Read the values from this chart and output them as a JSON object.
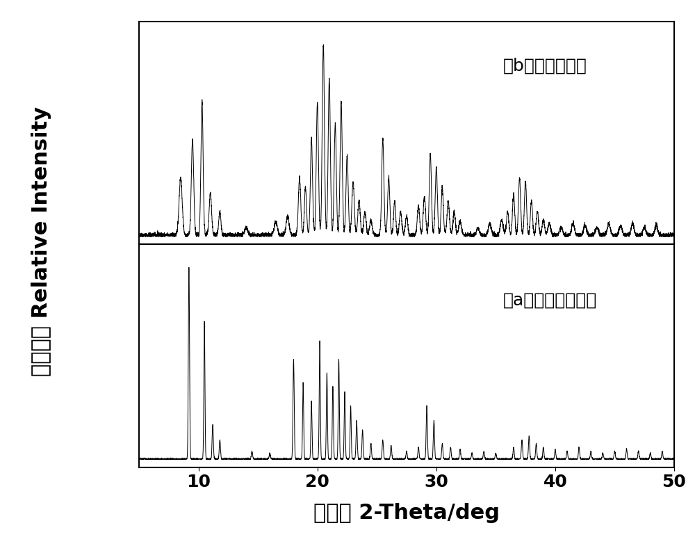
{
  "xlim": [
    5,
    50
  ],
  "xticks": [
    10,
    20,
    30,
    40,
    50
  ],
  "xlabel_cn": "衍射角 ",
  "xlabel_en": "2-Theta/deg",
  "ylabel_cn": "衍射强度 ",
  "ylabel_en": "Relative Intensity",
  "label_b": "（b）实施例图谱",
  "label_a": "（a）单晶模拟图谱",
  "background_color": "#ffffff",
  "line_color": "#000000",
  "xlabel_fontsize": 22,
  "tick_fontsize": 18,
  "label_fontsize": 18,
  "ylabel_fontsize": 22
}
